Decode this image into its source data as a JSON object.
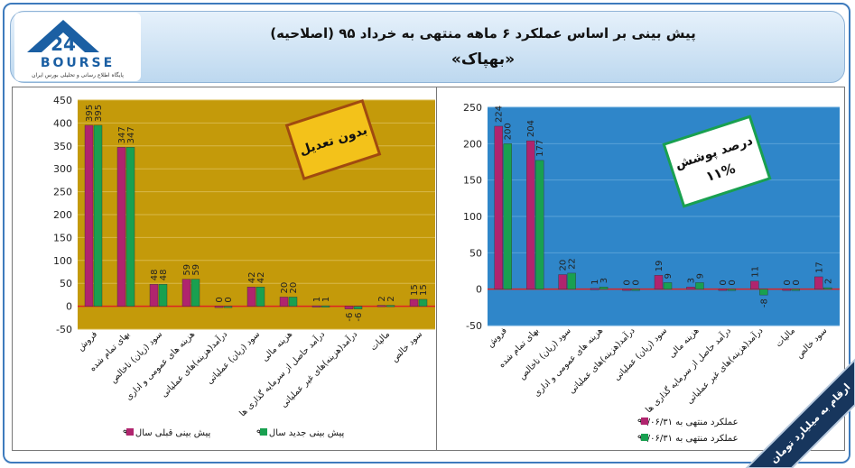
{
  "header": {
    "title": "پیش بینی بر اساس عملکرد ۶ ماهه منتهی به خرداد ۹۵ (اصلاحیه)",
    "subtitle": "«بهپاک»",
    "logo_text": "BOURSE",
    "logo_tagline": "پایگاه اطلاع رسانی و تحلیلی بورس ایران"
  },
  "footer_note": "ارقام به میلیارد تومان",
  "colors": {
    "magenta": "#b0246e",
    "green": "#19a050",
    "gold": "#c49a0a",
    "blue": "#2f86c9"
  },
  "chart_data": [
    {
      "type": "bar",
      "categories": [
        "فروش",
        "بهای تمام شده",
        "سود (زیان) ناخالص",
        "هزینه های عمومی و اداری",
        "درآمد(هزینه)های عملیاتی",
        "سود (زیان) عملیاتی",
        "هزینه مالی",
        "درآمد حاصل از سرمایه گذاری ها",
        "درآمد(هزینه)های غیر عملیاتی",
        "مالیات",
        "سود خالص"
      ],
      "series": [
        {
          "name": "پیش بینی قبلی سال ۹۵",
          "values": [
            395,
            347,
            48,
            59,
            0,
            42,
            20,
            1,
            -6,
            2,
            15
          ]
        },
        {
          "name": "پیش بینی جدید سال ۹۵",
          "values": [
            395,
            347,
            48,
            59,
            0,
            42,
            20,
            1,
            -6,
            2,
            15
          ]
        }
      ],
      "ylim": [
        -50,
        450
      ],
      "yticks": [
        -50,
        0,
        50,
        100,
        150,
        200,
        250,
        300,
        350,
        400,
        450
      ],
      "annotation": "بدون تعدیل",
      "legend_position": "bottom"
    },
    {
      "type": "bar",
      "categories": [
        "فروش",
        "بهای تمام شده",
        "سود (زیان) ناخالص",
        "هزینه های عمومی و اداری",
        "درآمد(هزینه)های عملیاتی",
        "سود (زیان) عملیاتی",
        "هزینه مالی",
        "درآمد حاصل از سرمایه گذاری ها",
        "درآمد(هزینه)های غیر عملیاتی",
        "مالیات",
        "سود خالص"
      ],
      "series": [
        {
          "name": "عملکرد منتهی به ۹۴/۰۶/۳۱",
          "values": [
            224,
            204,
            20,
            1,
            0,
            19,
            3,
            0,
            11,
            0,
            17
          ]
        },
        {
          "name": "عملکرد منتهی به ۹۵/۰۶/۳۱",
          "values": [
            200,
            177,
            22,
            3,
            0,
            9,
            9,
            0,
            -8,
            0,
            2
          ]
        }
      ],
      "ylim": [
        -50,
        250
      ],
      "yticks": [
        -50,
        0,
        50,
        100,
        150,
        200,
        250
      ],
      "annotation": "درصد پوشش",
      "annotation_value": "۱۱%",
      "legend_position": "bottom"
    }
  ]
}
